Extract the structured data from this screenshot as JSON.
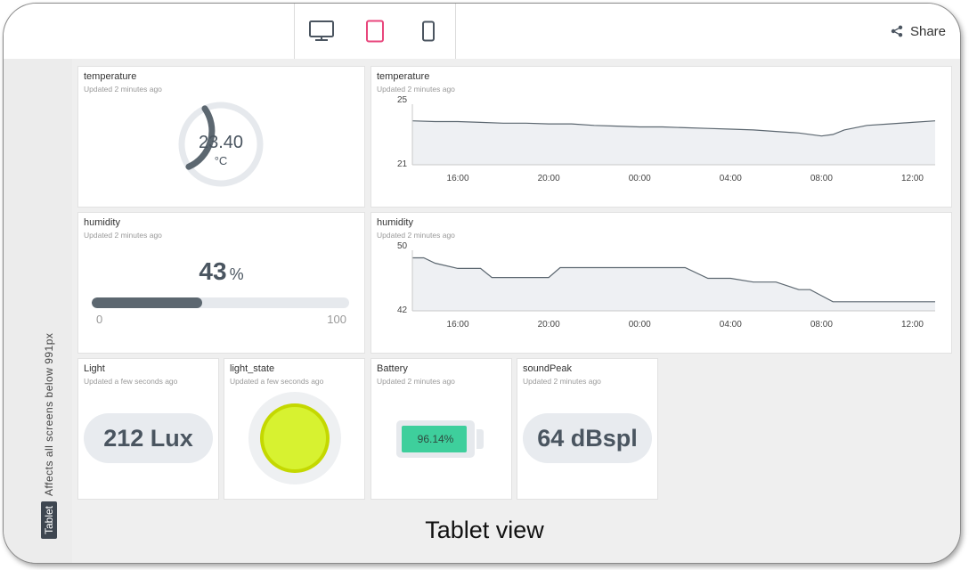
{
  "toolbar": {
    "share_label": "Share",
    "devices": [
      {
        "name": "desktop",
        "icon": "monitor-icon",
        "active": false
      },
      {
        "name": "tablet",
        "icon": "tablet-icon",
        "active": true
      },
      {
        "name": "mobile",
        "icon": "phone-icon",
        "active": false
      }
    ]
  },
  "sidebar": {
    "tag": "Tablet",
    "note": "Affects all screens below 991px"
  },
  "footer_caption": "Tablet view",
  "colors": {
    "accent": "#e8467c",
    "gauge": "#5c6770",
    "battery": "#3ecf9c",
    "light": "#d7f230"
  },
  "widgets": {
    "temp_gauge": {
      "title": "temperature",
      "updated": "Updated 2 minutes ago",
      "value": "23.40",
      "unit": "°C",
      "fraction": 0.28
    },
    "temp_chart": {
      "title": "temperature",
      "updated": "Updated 2 minutes ago"
    },
    "humidity_bar": {
      "title": "humidity",
      "updated": "Updated 2 minutes ago",
      "value": "43",
      "unit": "%",
      "min": "0",
      "max": "100",
      "fraction": 0.43
    },
    "humidity_chart": {
      "title": "humidity",
      "updated": "Updated 2 minutes ago"
    },
    "light": {
      "title": "Light",
      "updated": "Updated a few seconds ago",
      "value": "212 Lux"
    },
    "light_state": {
      "title": "light_state",
      "updated": "Updated a few seconds ago",
      "on": true
    },
    "battery": {
      "title": "Battery",
      "updated": "Updated 2 minutes ago",
      "value": "96.14%",
      "fraction": 0.9614
    },
    "sound": {
      "title": "soundPeak",
      "updated": "Updated 2 minutes ago",
      "value": "64 dBspl"
    }
  },
  "chart_data": [
    {
      "type": "area",
      "title": "temperature",
      "x": [
        "14:00",
        "15:00",
        "16:00",
        "17:00",
        "18:00",
        "19:00",
        "20:00",
        "21:00",
        "22:00",
        "23:00",
        "00:00",
        "01:00",
        "02:00",
        "03:00",
        "04:00",
        "05:00",
        "06:00",
        "07:00",
        "08:00",
        "08:30",
        "09:00",
        "10:00",
        "11:00",
        "12:00",
        "13:00"
      ],
      "values": [
        23.9,
        23.85,
        23.85,
        23.8,
        23.75,
        23.75,
        23.7,
        23.7,
        23.6,
        23.55,
        23.5,
        23.5,
        23.45,
        23.4,
        23.35,
        23.3,
        23.2,
        23.1,
        22.9,
        23.0,
        23.3,
        23.6,
        23.7,
        23.8,
        23.9
      ],
      "x_ticks": [
        "16:00",
        "20:00",
        "00:00",
        "04:00",
        "08:00",
        "12:00"
      ],
      "ylim": [
        21,
        25
      ],
      "y_ticks": [
        "25",
        "21"
      ],
      "grid": false
    },
    {
      "type": "area",
      "title": "humidity",
      "x": [
        "14:00",
        "14:30",
        "15:00",
        "16:00",
        "17:00",
        "17:30",
        "20:00",
        "20:30",
        "21:00",
        "23:00",
        "02:00",
        "03:00",
        "04:00",
        "05:00",
        "06:00",
        "07:00",
        "07:30",
        "08:00",
        "08:30",
        "10:00",
        "12:00",
        "13:00"
      ],
      "values": [
        49,
        49,
        48.3,
        47.6,
        47.6,
        46.4,
        46.4,
        47.7,
        47.7,
        47.7,
        47.7,
        46.3,
        46.3,
        45.8,
        45.8,
        44.8,
        44.8,
        44.0,
        43.2,
        43.2,
        43.2,
        43.2
      ],
      "x_ticks": [
        "16:00",
        "20:00",
        "00:00",
        "04:00",
        "08:00",
        "12:00"
      ],
      "ylim": [
        42,
        50
      ],
      "y_ticks": [
        "50",
        "42"
      ],
      "grid": false
    }
  ]
}
